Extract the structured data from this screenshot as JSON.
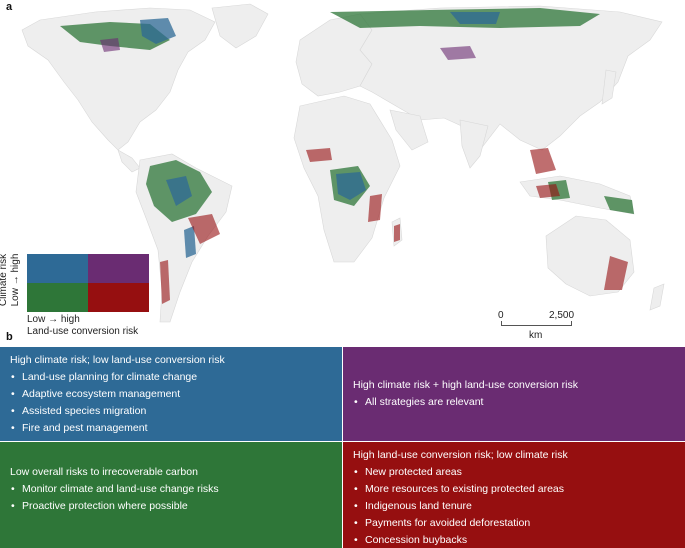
{
  "panels": {
    "a": "a",
    "b": "b"
  },
  "legend": {
    "y_label_line1": "Climate risk",
    "y_label_line2": "Low → high",
    "x_label_line1": "Low → high",
    "x_label_line2": "Land-use conversion risk",
    "colors": {
      "high_climate_low_landuse": "#2e6a96",
      "high_climate_high_landuse": "#6a2c72",
      "low_climate_low_landuse": "#2e7638",
      "low_climate_high_landuse": "#960f10"
    }
  },
  "scalebar": {
    "start": "0",
    "end": "2,500",
    "unit": "km"
  },
  "boxes": {
    "blue": {
      "title": "High climate risk; low land-use conversion risk",
      "items": [
        "Land-use planning for climate change",
        "Adaptive ecosystem management",
        "Assisted species migration",
        "Fire and pest management"
      ]
    },
    "purple": {
      "title": "High climate risk + high land-use conversion risk",
      "items": [
        "All strategies are relevant"
      ]
    },
    "green": {
      "title": "Low overall risks to irrecoverable carbon",
      "items": [
        "Monitor climate and land-use change risks",
        "Proactive protection where possible"
      ]
    },
    "red": {
      "title": "High land-use conversion risk; low climate risk",
      "items": [
        "New protected areas",
        "More resources to existing protected areas",
        "Indigenous land tenure",
        "Payments for avoided deforestation",
        "Concession buybacks"
      ]
    }
  }
}
